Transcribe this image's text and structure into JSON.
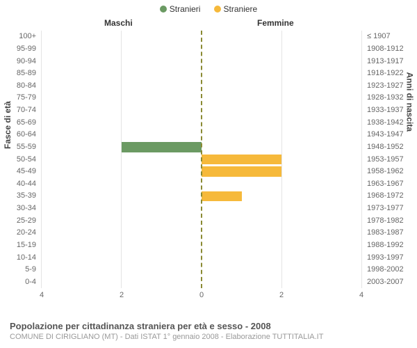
{
  "legend": {
    "male": {
      "label": "Stranieri",
      "color": "#6b9a63"
    },
    "female": {
      "label": "Straniere",
      "color": "#f6b93b"
    }
  },
  "column_headers": {
    "left": "Maschi",
    "right": "Femmine"
  },
  "axis_titles": {
    "left": "Fasce di età",
    "right": "Anni di nascita"
  },
  "chart": {
    "type": "population-pyramid",
    "x_max": 4,
    "x_ticks": [
      4,
      2,
      0,
      2,
      4
    ],
    "grid_color": "#e4e4e4",
    "center_line_color": "#8a8a33",
    "background_color": "#ffffff",
    "rows": [
      {
        "age": "100+",
        "years": "≤ 1907",
        "male": 0,
        "female": 0
      },
      {
        "age": "95-99",
        "years": "1908-1912",
        "male": 0,
        "female": 0
      },
      {
        "age": "90-94",
        "years": "1913-1917",
        "male": 0,
        "female": 0
      },
      {
        "age": "85-89",
        "years": "1918-1922",
        "male": 0,
        "female": 0
      },
      {
        "age": "80-84",
        "years": "1923-1927",
        "male": 0,
        "female": 0
      },
      {
        "age": "75-79",
        "years": "1928-1932",
        "male": 0,
        "female": 0
      },
      {
        "age": "70-74",
        "years": "1933-1937",
        "male": 0,
        "female": 0
      },
      {
        "age": "65-69",
        "years": "1938-1942",
        "male": 0,
        "female": 0
      },
      {
        "age": "60-64",
        "years": "1943-1947",
        "male": 0,
        "female": 0
      },
      {
        "age": "55-59",
        "years": "1948-1952",
        "male": 2,
        "female": 0
      },
      {
        "age": "50-54",
        "years": "1953-1957",
        "male": 0,
        "female": 2
      },
      {
        "age": "45-49",
        "years": "1958-1962",
        "male": 0,
        "female": 2
      },
      {
        "age": "40-44",
        "years": "1963-1967",
        "male": 0,
        "female": 0
      },
      {
        "age": "35-39",
        "years": "1968-1972",
        "male": 0,
        "female": 1
      },
      {
        "age": "30-34",
        "years": "1973-1977",
        "male": 0,
        "female": 0
      },
      {
        "age": "25-29",
        "years": "1978-1982",
        "male": 0,
        "female": 0
      },
      {
        "age": "20-24",
        "years": "1983-1987",
        "male": 0,
        "female": 0
      },
      {
        "age": "15-19",
        "years": "1988-1992",
        "male": 0,
        "female": 0
      },
      {
        "age": "10-14",
        "years": "1993-1997",
        "male": 0,
        "female": 0
      },
      {
        "age": "5-9",
        "years": "1998-2002",
        "male": 0,
        "female": 0
      },
      {
        "age": "0-4",
        "years": "2003-2007",
        "male": 0,
        "female": 0
      }
    ]
  },
  "footer": {
    "title": "Popolazione per cittadinanza straniera per età e sesso - 2008",
    "subtitle": "COMUNE DI CIRIGLIANO (MT) - Dati ISTAT 1° gennaio 2008 - Elaborazione TUTTITALIA.IT"
  }
}
